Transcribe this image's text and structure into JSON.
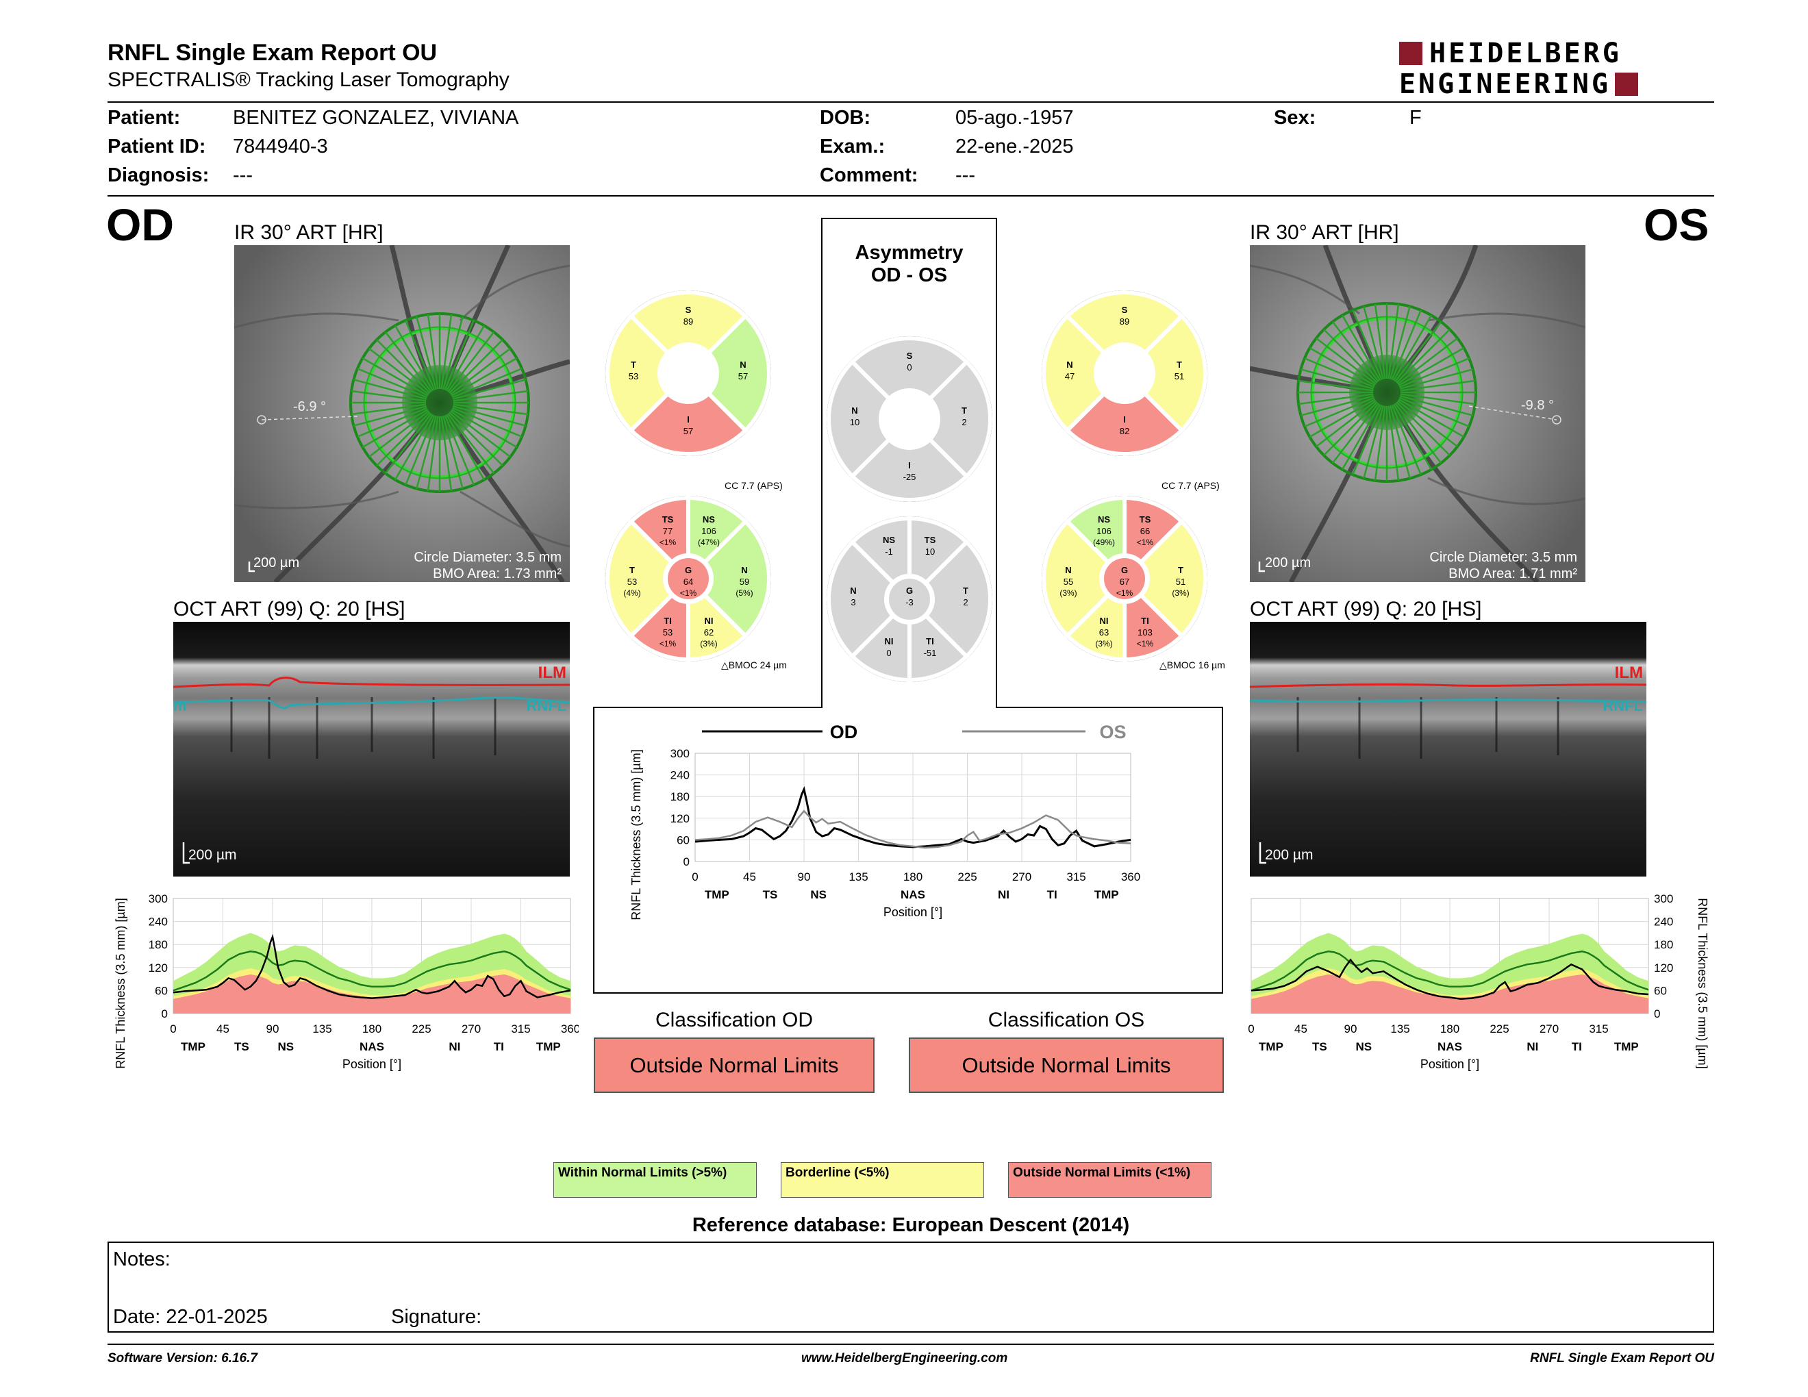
{
  "header": {
    "title": "RNFL Single Exam Report OU",
    "subtitle": "SPECTRALIS® Tracking Laser Tomography",
    "logo_line1": "HEIDELBERG",
    "logo_line2": "ENGINEERING",
    "brand_color": "#8b1a2b"
  },
  "patient": {
    "patient_label": "Patient:",
    "patient_value": "BENITEZ GONZALEZ, VIVIANA",
    "id_label": "Patient ID:",
    "id_value": "7844940-3",
    "diagnosis_label": "Diagnosis:",
    "diagnosis_value": "---",
    "dob_label": "DOB:",
    "dob_value": "05-ago.-1957",
    "exam_label": "Exam.:",
    "exam_value": "22-ene.-2025",
    "comment_label": "Comment:",
    "comment_value": "---",
    "sex_label": "Sex:",
    "sex_value": "F"
  },
  "od": {
    "eye": "OD",
    "ir_title": "IR 30° ART [HR]",
    "angle": "-6.9 °",
    "scale": "200 µm",
    "circle_diameter": "Circle Diameter: 3.5 mm",
    "bmo_area": "BMO Area: 1.73 mm²",
    "oct_title": "OCT ART (99) Q: 20 [HS]",
    "ilm": "ILM",
    "rnfl": "RNFL",
    "rnfl_cut": "m",
    "oct_scale": "200 µm",
    "cc": "CC 7.7 (APS)",
    "bmoc": "BMOC 24 µm",
    "quadrants": {
      "S": {
        "name": "S",
        "value": "89",
        "color": "#fbfb9b"
      },
      "T": {
        "name": "T",
        "value": "53",
        "color": "#fbfb9b"
      },
      "N": {
        "name": "N",
        "value": "57",
        "color": "#c8f79b"
      },
      "I": {
        "name": "I",
        "value": "57",
        "color": "#f5918a"
      }
    },
    "sectors": {
      "TS": {
        "name": "TS",
        "value": "77",
        "pct": "<1%",
        "color": "#f5918a"
      },
      "NS": {
        "name": "NS",
        "value": "106",
        "pct": "(47%)",
        "color": "#c8f79b"
      },
      "N": {
        "name": "N",
        "value": "59",
        "pct": "(5%)",
        "color": "#c8f79b"
      },
      "NI": {
        "name": "NI",
        "value": "62",
        "pct": "(3%)",
        "color": "#fbfb9b"
      },
      "TI": {
        "name": "TI",
        "value": "53",
        "pct": "<1%",
        "color": "#f5918a"
      },
      "T": {
        "name": "T",
        "value": "53",
        "pct": "(4%)",
        "color": "#fbfb9b"
      },
      "G": {
        "name": "G",
        "value": "64",
        "pct": "<1%",
        "color": "#f5918a"
      }
    },
    "chart_data": {
      "type": "line",
      "title": "",
      "xlabel": "Position [°]",
      "ylabel": "RNFL Thickness (3.5 mm) [µm]",
      "xlim": [
        0,
        360
      ],
      "ylim": [
        0,
        300
      ],
      "xticks": [
        0,
        45,
        90,
        135,
        180,
        225,
        270,
        315,
        360
      ],
      "yticks": [
        0,
        60,
        120,
        180,
        240,
        300
      ],
      "sector_labels": [
        {
          "x": 18,
          "label": "TMP"
        },
        {
          "x": 62,
          "label": "TS"
        },
        {
          "x": 102,
          "label": "NS"
        },
        {
          "x": 180,
          "label": "NAS"
        },
        {
          "x": 255,
          "label": "NI"
        },
        {
          "x": 295,
          "label": "TI"
        },
        {
          "x": 340,
          "label": "TMP"
        }
      ],
      "x": [
        0,
        10,
        20,
        30,
        40,
        50,
        60,
        70,
        75,
        80,
        85,
        90,
        95,
        100,
        105,
        110,
        120,
        130,
        140,
        150,
        160,
        170,
        180,
        190,
        200,
        210,
        220,
        230,
        240,
        250,
        260,
        270,
        280,
        290,
        300,
        305,
        310,
        315,
        320,
        330,
        340,
        350,
        360
      ],
      "normal_mean": [
        60,
        70,
        80,
        95,
        115,
        140,
        155,
        162,
        160,
        155,
        145,
        132,
        125,
        128,
        135,
        138,
        135,
        120,
        105,
        92,
        85,
        75,
        70,
        70,
        72,
        80,
        95,
        110,
        120,
        128,
        132,
        138,
        148,
        157,
        162,
        158,
        150,
        140,
        125,
        105,
        85,
        72,
        62
      ],
      "band_green_top": [
        85,
        100,
        115,
        135,
        160,
        185,
        200,
        210,
        205,
        198,
        188,
        172,
        162,
        165,
        172,
        178,
        175,
        160,
        140,
        122,
        110,
        98,
        92,
        92,
        95,
        105,
        125,
        145,
        158,
        168,
        174,
        182,
        192,
        202,
        208,
        204,
        195,
        182,
        162,
        138,
        112,
        95,
        85
      ],
      "band_yellow_top": [
        45,
        52,
        58,
        68,
        82,
        100,
        112,
        118,
        115,
        110,
        104,
        92,
        88,
        90,
        96,
        98,
        96,
        85,
        74,
        64,
        58,
        52,
        48,
        48,
        50,
        55,
        65,
        76,
        84,
        90,
        94,
        98,
        106,
        112,
        116,
        112,
        106,
        98,
        88,
        74,
        60,
        52,
        46
      ],
      "band_red_top": [
        38,
        44,
        50,
        58,
        70,
        86,
        96,
        102,
        99,
        95,
        90,
        80,
        76,
        78,
        83,
        85,
        83,
        73,
        64,
        55,
        50,
        45,
        42,
        42,
        43,
        48,
        56,
        66,
        72,
        78,
        82,
        85,
        92,
        98,
        102,
        98,
        92,
        85,
        76,
        64,
        52,
        45,
        40
      ],
      "series": [
        {
          "name": "OD",
          "x": [
            0,
            10,
            20,
            30,
            40,
            45,
            50,
            55,
            60,
            65,
            70,
            75,
            80,
            85,
            88,
            90,
            92,
            95,
            100,
            105,
            110,
            115,
            120,
            130,
            140,
            150,
            160,
            170,
            180,
            190,
            200,
            210,
            215,
            220,
            225,
            230,
            240,
            250,
            255,
            260,
            265,
            270,
            275,
            280,
            285,
            290,
            295,
            300,
            305,
            310,
            315,
            320,
            330,
            340,
            350,
            360
          ],
          "values": [
            55,
            58,
            60,
            62,
            70,
            80,
            92,
            88,
            75,
            62,
            70,
            85,
            112,
            150,
            185,
            200,
            170,
            120,
            82,
            70,
            75,
            92,
            88,
            72,
            60,
            50,
            45,
            42,
            40,
            42,
            45,
            48,
            55,
            62,
            55,
            52,
            58,
            70,
            85,
            68,
            55,
            62,
            75,
            72,
            98,
            90,
            62,
            45,
            50,
            72,
            85,
            58,
            42,
            48,
            55,
            60
          ]
        }
      ]
    }
  },
  "os": {
    "eye": "OS",
    "ir_title": "IR 30° ART [HR]",
    "angle": "-9.8 °",
    "scale": "200 µm",
    "circle_diameter": "Circle Diameter: 3.5 mm",
    "bmo_area": "BMO Area: 1.71 mm²",
    "oct_title": "OCT ART (99) Q: 20 [HS]",
    "ilm": "ILM",
    "rnfl": "RNFL",
    "oct_scale": "200 µm",
    "cc": "CC 7.7 (APS)",
    "bmoc": "BMOC 16 µm",
    "quadrants": {
      "S": {
        "name": "S",
        "value": "89",
        "color": "#fbfb9b"
      },
      "N": {
        "name": "N",
        "value": "47",
        "color": "#fbfb9b"
      },
      "T": {
        "name": "T",
        "value": "51",
        "color": "#fbfb9b"
      },
      "I": {
        "name": "I",
        "value": "82",
        "color": "#f5918a"
      }
    },
    "sectors": {
      "NS": {
        "name": "NS",
        "value": "106",
        "pct": "(49%)",
        "color": "#c8f79b"
      },
      "TS": {
        "name": "TS",
        "value": "66",
        "pct": "<1%",
        "color": "#f5918a"
      },
      "T": {
        "name": "T",
        "value": "51",
        "pct": "(3%)",
        "color": "#fbfb9b"
      },
      "TI": {
        "name": "TI",
        "value": "103",
        "pct": "<1%",
        "color": "#f5918a"
      },
      "NI": {
        "name": "NI",
        "value": "63",
        "pct": "(3%)",
        "color": "#fbfb9b"
      },
      "N": {
        "name": "N",
        "value": "55",
        "pct": "(3%)",
        "color": "#fbfb9b"
      },
      "G": {
        "name": "G",
        "value": "67",
        "pct": "<1%",
        "color": "#f5918a"
      }
    },
    "chart_data": {
      "type": "line",
      "title": "",
      "xlabel": "Position [°]",
      "ylabel": "RNFL Thickness (3.5 mm) [µm]",
      "xlim": [
        0,
        360
      ],
      "ylim": [
        0,
        300
      ],
      "xticks": [
        0,
        45,
        90,
        135,
        180,
        225,
        270,
        315
      ],
      "yticks": [
        0,
        60,
        120,
        180,
        240,
        300
      ],
      "sector_labels": [
        {
          "x": 18,
          "label": "TMP"
        },
        {
          "x": 62,
          "label": "TS"
        },
        {
          "x": 102,
          "label": "NS"
        },
        {
          "x": 180,
          "label": "NAS"
        },
        {
          "x": 255,
          "label": "NI"
        },
        {
          "x": 295,
          "label": "TI"
        },
        {
          "x": 340,
          "label": "TMP"
        }
      ],
      "x": [
        0,
        10,
        20,
        30,
        40,
        50,
        60,
        70,
        75,
        80,
        85,
        90,
        95,
        100,
        105,
        110,
        120,
        130,
        140,
        150,
        160,
        170,
        180,
        190,
        200,
        210,
        220,
        230,
        240,
        250,
        260,
        270,
        280,
        290,
        300,
        305,
        310,
        315,
        320,
        330,
        340,
        350,
        360
      ],
      "normal_mean": [
        60,
        70,
        80,
        95,
        115,
        140,
        155,
        162,
        160,
        155,
        145,
        132,
        125,
        128,
        135,
        138,
        135,
        120,
        105,
        92,
        85,
        75,
        70,
        70,
        72,
        80,
        95,
        110,
        120,
        128,
        132,
        138,
        148,
        157,
        162,
        158,
        150,
        140,
        125,
        105,
        85,
        72,
        62
      ],
      "band_green_top": [
        85,
        100,
        115,
        135,
        160,
        185,
        200,
        210,
        205,
        198,
        188,
        172,
        162,
        165,
        172,
        178,
        175,
        160,
        140,
        122,
        110,
        98,
        92,
        92,
        95,
        105,
        125,
        145,
        158,
        168,
        174,
        182,
        192,
        202,
        208,
        204,
        195,
        182,
        162,
        138,
        112,
        95,
        85
      ],
      "band_yellow_top": [
        45,
        52,
        58,
        68,
        82,
        100,
        112,
        118,
        115,
        110,
        104,
        92,
        88,
        90,
        96,
        98,
        96,
        85,
        74,
        64,
        58,
        52,
        48,
        48,
        50,
        55,
        65,
        76,
        84,
        90,
        94,
        98,
        106,
        112,
        116,
        112,
        106,
        98,
        88,
        74,
        60,
        52,
        46
      ],
      "band_red_top": [
        38,
        44,
        50,
        58,
        70,
        86,
        96,
        102,
        99,
        95,
        90,
        80,
        76,
        78,
        83,
        85,
        83,
        73,
        64,
        55,
        50,
        45,
        42,
        42,
        43,
        48,
        56,
        66,
        72,
        78,
        82,
        85,
        92,
        98,
        102,
        98,
        92,
        85,
        76,
        64,
        52,
        45,
        40
      ],
      "series": [
        {
          "name": "OS",
          "x": [
            0,
            10,
            20,
            30,
            40,
            50,
            60,
            70,
            80,
            85,
            90,
            95,
            100,
            105,
            110,
            120,
            130,
            140,
            150,
            160,
            170,
            180,
            190,
            200,
            210,
            220,
            225,
            230,
            235,
            240,
            250,
            260,
            270,
            280,
            290,
            300,
            310,
            315,
            320,
            330,
            340,
            350,
            360
          ],
          "values": [
            60,
            62,
            65,
            72,
            85,
            110,
            122,
            110,
            95,
            120,
            140,
            122,
            108,
            118,
            105,
            110,
            92,
            75,
            62,
            52,
            45,
            42,
            38,
            40,
            45,
            55,
            72,
            82,
            58,
            62,
            75,
            80,
            92,
            108,
            128,
            115,
            82,
            72,
            68,
            62,
            58,
            52,
            50
          ]
        }
      ]
    }
  },
  "asymmetry": {
    "title_line1": "Asymmetry",
    "title_line2": "OD - OS",
    "quadrants": {
      "S": {
        "name": "S",
        "value": "0"
      },
      "N": {
        "name": "N",
        "value": "10"
      },
      "T": {
        "name": "T",
        "value": "2"
      },
      "I": {
        "name": "I",
        "value": "-25"
      }
    },
    "sectors": {
      "NS": {
        "name": "NS",
        "value": "-1"
      },
      "TS": {
        "name": "TS",
        "value": "10"
      },
      "N": {
        "name": "N",
        "value": "3"
      },
      "T": {
        "name": "T",
        "value": "2"
      },
      "NI": {
        "name": "NI",
        "value": "0"
      },
      "TI": {
        "name": "TI",
        "value": "-51"
      },
      "G": {
        "name": "G",
        "value": "-3"
      }
    },
    "fill_color": "#d6d6d6",
    "chart_data": {
      "type": "line",
      "title": "",
      "xlabel": "Position [°]",
      "ylabel": "RNFL Thickness (3.5 mm) [µm]",
      "xlim": [
        0,
        360
      ],
      "ylim": [
        0,
        300
      ],
      "xticks": [
        0,
        45,
        90,
        135,
        180,
        225,
        270,
        315,
        360
      ],
      "yticks": [
        0,
        60,
        120,
        180,
        240,
        300
      ],
      "legend": [
        "OD",
        "OS"
      ],
      "legend_placement": "top",
      "sector_labels": [
        {
          "x": 18,
          "label": "TMP"
        },
        {
          "x": 62,
          "label": "TS"
        },
        {
          "x": 102,
          "label": "NS"
        },
        {
          "x": 180,
          "label": "NAS"
        },
        {
          "x": 255,
          "label": "NI"
        },
        {
          "x": 295,
          "label": "TI"
        },
        {
          "x": 340,
          "label": "TMP"
        }
      ],
      "series": [
        {
          "name": "OD",
          "color": "#000000"
        },
        {
          "name": "OS",
          "color": "#8a8a8a"
        }
      ]
    }
  },
  "classification": {
    "od_label": "Classification OD",
    "od_value": "Outside Normal Limits",
    "os_label": "Classification OS",
    "os_value": "Outside Normal Limits",
    "color": "#f58a80"
  },
  "legend": {
    "within": "Within Normal Limits (>5%)",
    "borderline": "Borderline (<5%)",
    "outside": "Outside Normal Limits (<1%)",
    "within_color": "#c8f79b",
    "borderline_color": "#fbfb9b",
    "outside_color": "#f5918a"
  },
  "reference_db": "Reference database: European Descent (2014)",
  "notes": {
    "notes_label": "Notes:",
    "date_label": "Date: 22-01-2025",
    "signature_label": "Signature:"
  },
  "footer": {
    "software": "Software Version: 6.16.7",
    "website": "www.HeidelbergEngineering.com",
    "report": "RNFL Single Exam Report OU"
  }
}
